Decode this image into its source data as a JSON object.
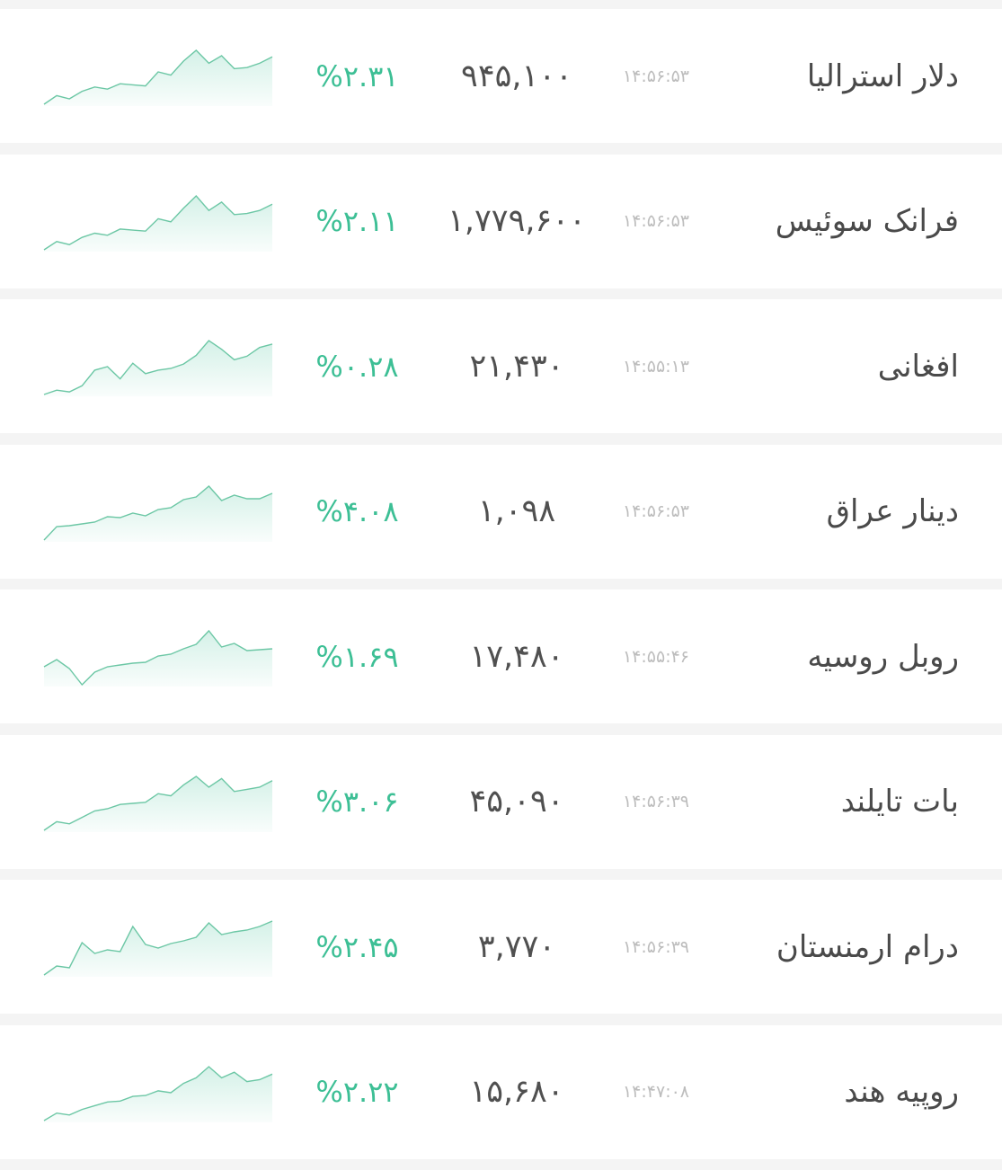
{
  "accent_color": "#3dbf95",
  "rows": [
    {
      "name": "دلار استرالیا",
      "time": "۱۴:۵۶:۵۳",
      "price": "۹۴۵,۱۰۰",
      "change": "%۲.۳۱",
      "trend": "up",
      "sparkline": [
        0,
        8,
        5,
        12,
        16,
        14,
        19,
        18,
        17,
        30,
        27,
        40,
        50,
        38,
        45,
        33,
        34,
        38,
        44
      ]
    },
    {
      "name": "فرانک سوئیس",
      "time": "۱۴:۵۶:۵۳",
      "price": "۱,۷۷۹,۶۰۰",
      "change": "%۲.۱۱",
      "trend": "up",
      "sparkline": [
        0,
        8,
        5,
        12,
        16,
        14,
        20,
        19,
        18,
        30,
        27,
        40,
        52,
        38,
        46,
        34,
        35,
        38,
        44
      ]
    },
    {
      "name": "افغانی",
      "time": "۱۴:۵۵:۱۳",
      "price": "۲۱,۴۳۰",
      "change": "%۰.۲۸",
      "trend": "up",
      "sparkline": [
        0,
        5,
        3,
        10,
        28,
        32,
        18,
        36,
        24,
        28,
        30,
        35,
        45,
        62,
        52,
        40,
        44,
        54,
        58
      ]
    },
    {
      "name": "دینار عراق",
      "time": "۱۴:۵۶:۵۳",
      "price": "۱,۰۹۸",
      "change": "%۴.۰۸",
      "trend": "up",
      "sparkline": [
        0,
        15,
        16,
        18,
        20,
        26,
        25,
        30,
        27,
        34,
        36,
        45,
        48,
        60,
        44,
        50,
        46,
        46,
        52
      ]
    },
    {
      "name": "روبل روسیه",
      "time": "۱۴:۵۵:۴۶",
      "price": "۱۷,۴۸۰",
      "change": "%۱.۶۹",
      "trend": "up",
      "sparkline": [
        20,
        28,
        18,
        0,
        14,
        20,
        22,
        24,
        25,
        32,
        34,
        40,
        45,
        60,
        42,
        46,
        38,
        39,
        40
      ]
    },
    {
      "name": "بات تایلند",
      "time": "۱۴:۵۶:۳۹",
      "price": "۴۵,۰۹۰",
      "change": "%۳.۰۶",
      "trend": "up",
      "sparkline": [
        0,
        8,
        6,
        12,
        18,
        20,
        24,
        25,
        26,
        34,
        32,
        42,
        50,
        40,
        48,
        36,
        38,
        40,
        46
      ]
    },
    {
      "name": "درام ارمنستان",
      "time": "۱۴:۵۶:۳۹",
      "price": "۳,۷۷۰",
      "change": "%۲.۴۵",
      "trend": "up",
      "sparkline": [
        0,
        10,
        8,
        36,
        24,
        28,
        26,
        54,
        34,
        30,
        35,
        38,
        42,
        58,
        45,
        48,
        50,
        54,
        60
      ]
    },
    {
      "name": "روپیه هند",
      "time": "۱۴:۴۷:۰۸",
      "price": "۱۵,۶۸۰",
      "change": "%۲.۲۲",
      "trend": "up",
      "sparkline": [
        0,
        8,
        6,
        12,
        16,
        20,
        21,
        26,
        27,
        32,
        30,
        40,
        46,
        58,
        46,
        52,
        42,
        44,
        50
      ]
    }
  ]
}
